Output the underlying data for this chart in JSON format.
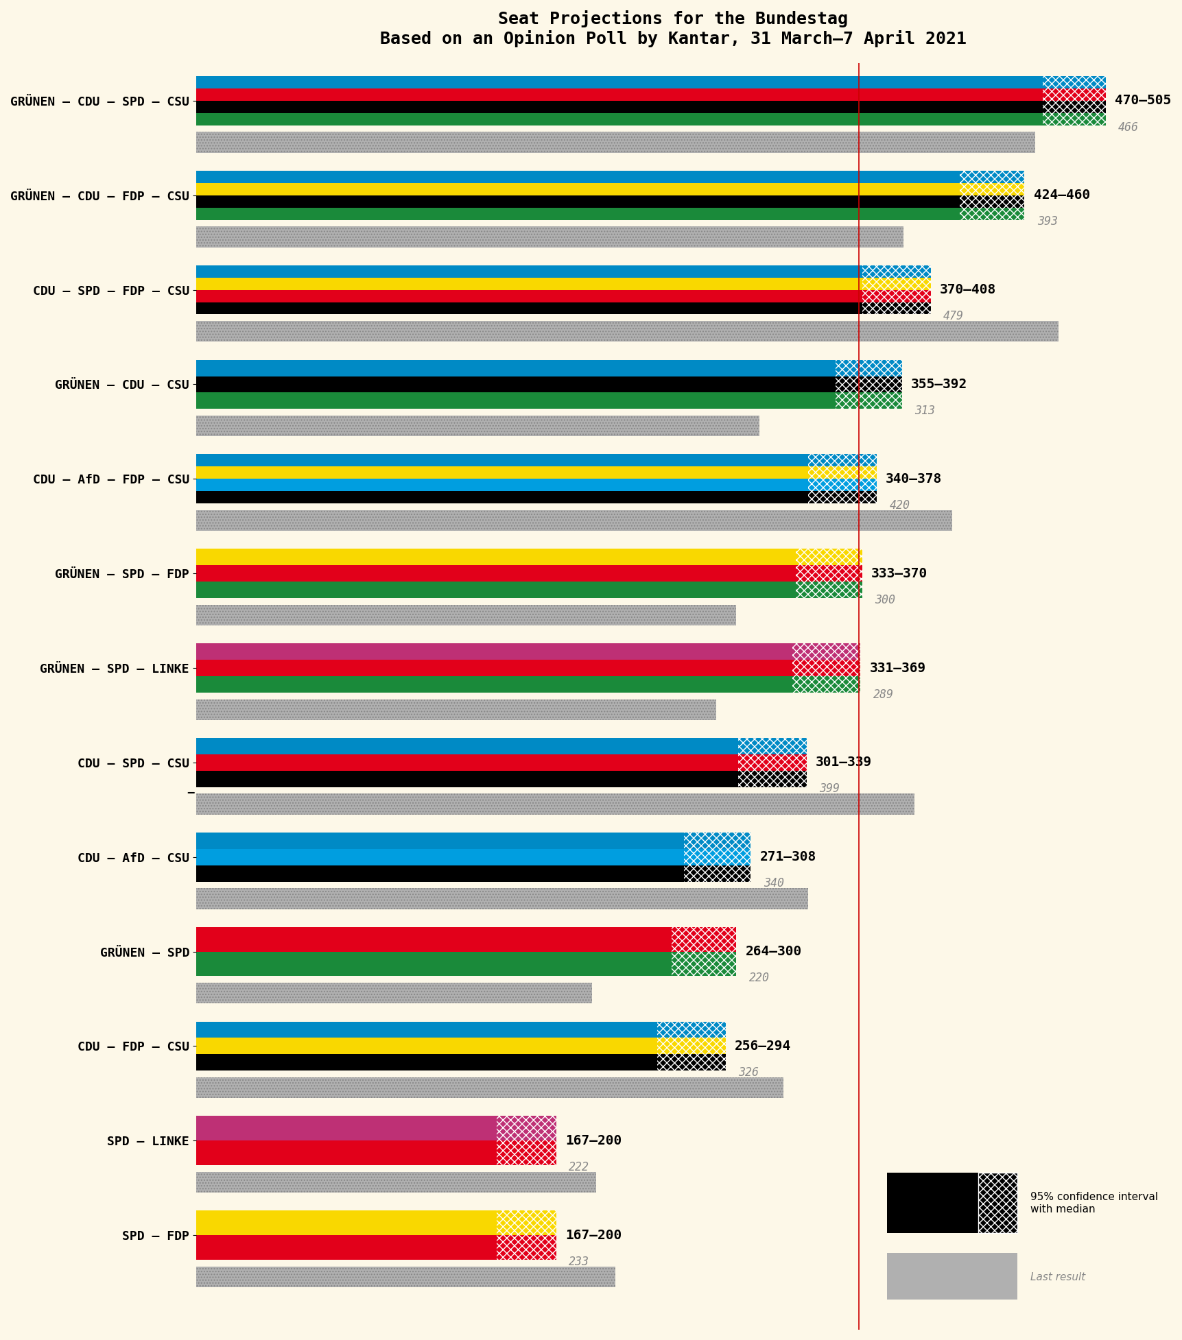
{
  "title": "Seat Projections for the Bundestag",
  "subtitle": "Based on an Opinion Poll by Kantar, 31 March–7 April 2021",
  "background_color": "#fdf8e8",
  "majority_line": 368,
  "xmax": 530,
  "coalitions": [
    {
      "label": "GRÜNEN – CDU – SPD – CSU",
      "parties": [
        "Grünen",
        "CDU",
        "SPD",
        "CSU"
      ],
      "colors": [
        "#1a8a3a",
        "#000000",
        "#e2001a",
        "#008ac5"
      ],
      "median_low": 470,
      "median_high": 505,
      "last_result": 466,
      "hatch_colors": [
        "#1a8a3a",
        "#000000",
        "#e2001a",
        "#008ac5"
      ],
      "underline": false
    },
    {
      "label": "GRÜNEN – CDU – FDP – CSU",
      "parties": [
        "Grünen",
        "CDU",
        "FDP",
        "CSU"
      ],
      "colors": [
        "#1a8a3a",
        "#000000",
        "#f9d800",
        "#008ac5"
      ],
      "median_low": 424,
      "median_high": 460,
      "last_result": 393,
      "hatch_colors": [
        "#1a8a3a",
        "#000000",
        "#f9d800",
        "#008ac5"
      ],
      "underline": false
    },
    {
      "label": "CDU – SPD – FDP – CSU",
      "parties": [
        "CDU",
        "SPD",
        "FDP",
        "CSU"
      ],
      "colors": [
        "#000000",
        "#e2001a",
        "#f9d800",
        "#008ac5"
      ],
      "median_low": 370,
      "median_high": 408,
      "last_result": 479,
      "hatch_colors": [
        "#000000",
        "#e2001a",
        "#f9d800",
        "#008ac5"
      ],
      "underline": false
    },
    {
      "label": "GRÜNEN – CDU – CSU",
      "parties": [
        "Grünen",
        "CDU",
        "CSU"
      ],
      "colors": [
        "#1a8a3a",
        "#000000",
        "#008ac5"
      ],
      "median_low": 355,
      "median_high": 392,
      "last_result": 313,
      "hatch_colors": [
        "#1a8a3a",
        "#000000",
        "#008ac5"
      ],
      "underline": false
    },
    {
      "label": "CDU – AfD – FDP – CSU",
      "parties": [
        "CDU",
        "AfD",
        "FDP",
        "CSU"
      ],
      "colors": [
        "#000000",
        "#009ee0",
        "#f9d800",
        "#008ac5"
      ],
      "median_low": 340,
      "median_high": 378,
      "last_result": 420,
      "hatch_colors": [
        "#000000",
        "#009ee0",
        "#f9d800",
        "#008ac5"
      ],
      "underline": false
    },
    {
      "label": "GRÜNEN – SPD – FDP",
      "parties": [
        "Grünen",
        "SPD",
        "FDP"
      ],
      "colors": [
        "#1a8a3a",
        "#e2001a",
        "#f9d800"
      ],
      "median_low": 333,
      "median_high": 370,
      "last_result": 300,
      "hatch_colors": [
        "#1a8a3a",
        "#e2001a",
        "#f9d800"
      ],
      "underline": false
    },
    {
      "label": "GRÜNEN – SPD – LINKE",
      "parties": [
        "Grünen",
        "SPD",
        "LINKE"
      ],
      "colors": [
        "#1a8a3a",
        "#e2001a",
        "#be3075"
      ],
      "median_low": 331,
      "median_high": 369,
      "last_result": 289,
      "hatch_colors": [
        "#1a8a3a",
        "#e2001a",
        "#be3075"
      ],
      "underline": false
    },
    {
      "label": "CDU – SPD – CSU",
      "parties": [
        "CDU",
        "SPD",
        "CSU"
      ],
      "colors": [
        "#000000",
        "#e2001a",
        "#008ac5"
      ],
      "median_low": 301,
      "median_high": 339,
      "last_result": 399,
      "hatch_colors": [
        "#000000",
        "#e2001a",
        "#008ac5"
      ],
      "underline": true
    },
    {
      "label": "CDU – AfD – CSU",
      "parties": [
        "CDU",
        "AfD",
        "CSU"
      ],
      "colors": [
        "#000000",
        "#009ee0",
        "#008ac5"
      ],
      "median_low": 271,
      "median_high": 308,
      "last_result": 340,
      "hatch_colors": [
        "#000000",
        "#009ee0",
        "#008ac5"
      ],
      "underline": false
    },
    {
      "label": "GRÜNEN – SPD",
      "parties": [
        "Grünen",
        "SPD"
      ],
      "colors": [
        "#1a8a3a",
        "#e2001a"
      ],
      "median_low": 264,
      "median_high": 300,
      "last_result": 220,
      "hatch_colors": [
        "#1a8a3a",
        "#e2001a"
      ],
      "underline": false
    },
    {
      "label": "CDU – FDP – CSU",
      "parties": [
        "CDU",
        "FDP",
        "CSU"
      ],
      "colors": [
        "#000000",
        "#f9d800",
        "#008ac5"
      ],
      "median_low": 256,
      "median_high": 294,
      "last_result": 326,
      "hatch_colors": [
        "#000000",
        "#f9d800",
        "#008ac5"
      ],
      "underline": false
    },
    {
      "label": "SPD – LINKE",
      "parties": [
        "SPD",
        "LINKE"
      ],
      "colors": [
        "#e2001a",
        "#be3075"
      ],
      "median_low": 167,
      "median_high": 200,
      "last_result": 222,
      "hatch_colors": [
        "#e2001a",
        "#be3075"
      ],
      "underline": false
    },
    {
      "label": "SPD – FDP",
      "parties": [
        "SPD",
        "FDP"
      ],
      "colors": [
        "#e2001a",
        "#f9d800"
      ],
      "median_low": 167,
      "median_high": 200,
      "last_result": 233,
      "hatch_colors": [
        "#e2001a",
        "#f9d800"
      ],
      "underline": false
    }
  ]
}
